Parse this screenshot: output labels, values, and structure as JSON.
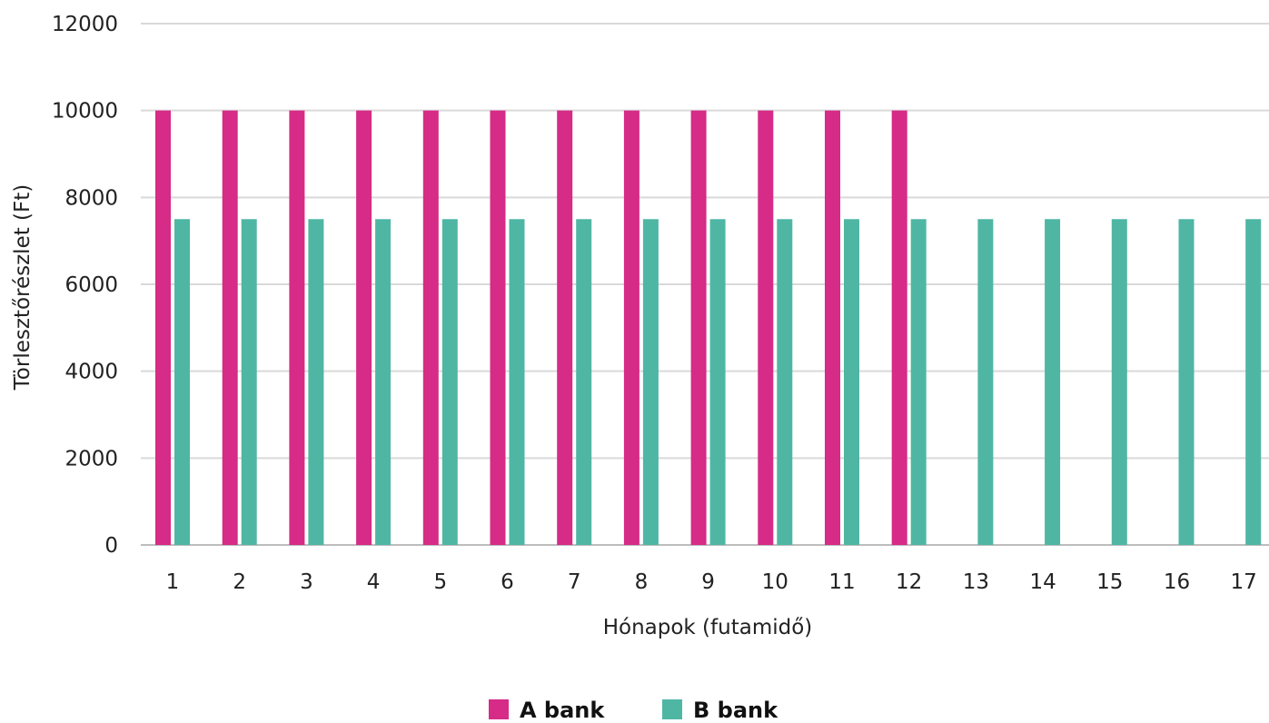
{
  "chart_data": {
    "type": "bar",
    "title": "",
    "xlabel": "Hónapok (futamidő)",
    "ylabel": "Törlesztőrészlet (Ft)",
    "ylim": [
      0,
      12000
    ],
    "yticks": [
      0,
      2000,
      4000,
      6000,
      8000,
      10000,
      12000
    ],
    "categories": [
      "1",
      "2",
      "3",
      "4",
      "5",
      "6",
      "7",
      "8",
      "9",
      "10",
      "11",
      "12",
      "13",
      "14",
      "15",
      "16",
      "17"
    ],
    "series": [
      {
        "name": "A bank",
        "color": "#d62b87",
        "values": [
          10000,
          10000,
          10000,
          10000,
          10000,
          10000,
          10000,
          10000,
          10000,
          10000,
          10000,
          10000,
          null,
          null,
          null,
          null,
          null
        ]
      },
      {
        "name": "B bank",
        "color": "#4fb6a4",
        "values": [
          7500,
          7500,
          7500,
          7500,
          7500,
          7500,
          7500,
          7500,
          7500,
          7500,
          7500,
          7500,
          7500,
          7500,
          7500,
          7500,
          7500
        ]
      }
    ],
    "grid": true,
    "legend_position": "bottom-center"
  }
}
